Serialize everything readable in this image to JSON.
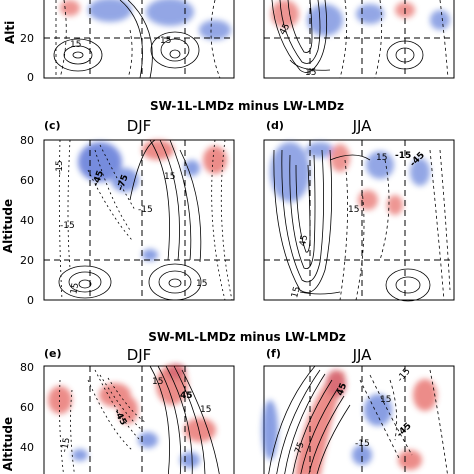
{
  "rows": [
    {
      "title": "",
      "panels": [
        {
          "letter": "",
          "season": "",
          "yticks": [
            "0",
            "20"
          ],
          "contour_labels": [
            "15",
            "15"
          ]
        },
        {
          "letter": "",
          "season": "",
          "yticks": [],
          "contour_labels": [
            "45",
            "15"
          ]
        }
      ]
    },
    {
      "title": "SW-1L-LMDz minus LW-LMDz",
      "panels": [
        {
          "letter": "(c)",
          "season": "DJF",
          "yticks": [
            "0",
            "20",
            "40",
            "60",
            "80"
          ],
          "contour_labels": [
            "-15",
            "15",
            "-15",
            "-15",
            "-45",
            "-75",
            "15",
            "15"
          ]
        },
        {
          "letter": "(d)",
          "season": "JJA",
          "yticks": [],
          "contour_labels": [
            "-15",
            "15",
            "-45",
            "45",
            "15",
            "15"
          ]
        }
      ]
    },
    {
      "title": "SW-ML-LMDz minus LW-LMDz",
      "panels": [
        {
          "letter": "(e)",
          "season": "DJF",
          "yticks": [
            "40",
            "60",
            "80"
          ],
          "contour_labels": [
            "-15",
            "-45",
            "15",
            "45",
            "15"
          ]
        },
        {
          "letter": "(f)",
          "season": "JJA",
          "yticks": [],
          "contour_labels": [
            "45",
            "75",
            "-15",
            "-15",
            "-45",
            "15"
          ]
        }
      ]
    }
  ],
  "axis": {
    "ylabel": "Altitude",
    "ylabel_partial": "Alti"
  },
  "colors": {
    "positive": "#e0413a",
    "negative": "#3b5fd0",
    "contour": "#000000"
  }
}
